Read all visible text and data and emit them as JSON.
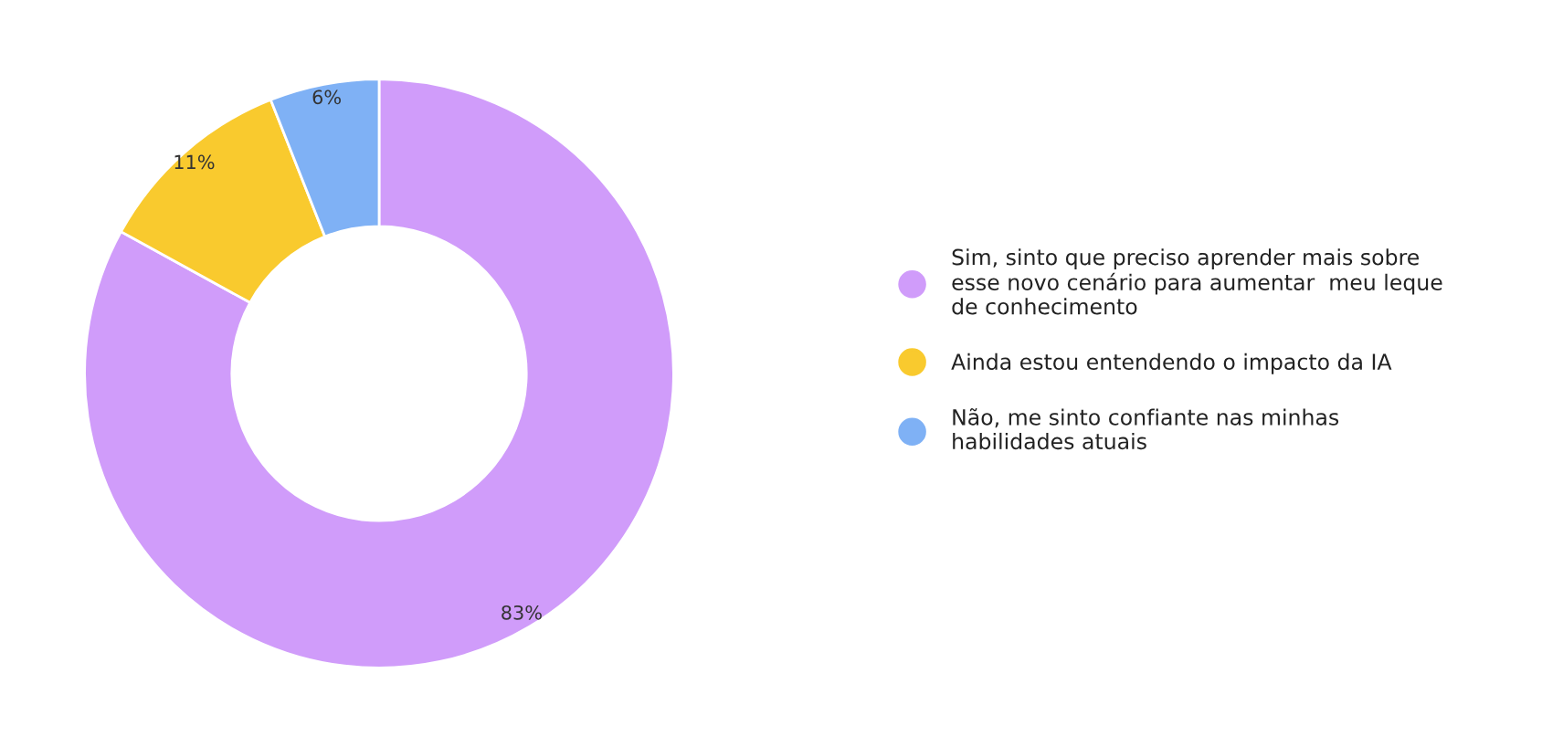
{
  "chart_data": {
    "type": "donut",
    "categories": [
      "Sim, sinto que preciso aprender mais sobre esse novo cenário para aumentar  meu leque de conhecimento",
      "Ainda estou entendendo o impacto da IA",
      "Não, me sinto confiante nas minhas habilidades atuais"
    ],
    "values": [
      83,
      11,
      6
    ],
    "colors": [
      "#d09cfa",
      "#f9ca2e",
      "#7fb1f5"
    ],
    "value_labels": [
      "83%",
      "11%",
      "6%"
    ],
    "legend": "right"
  }
}
